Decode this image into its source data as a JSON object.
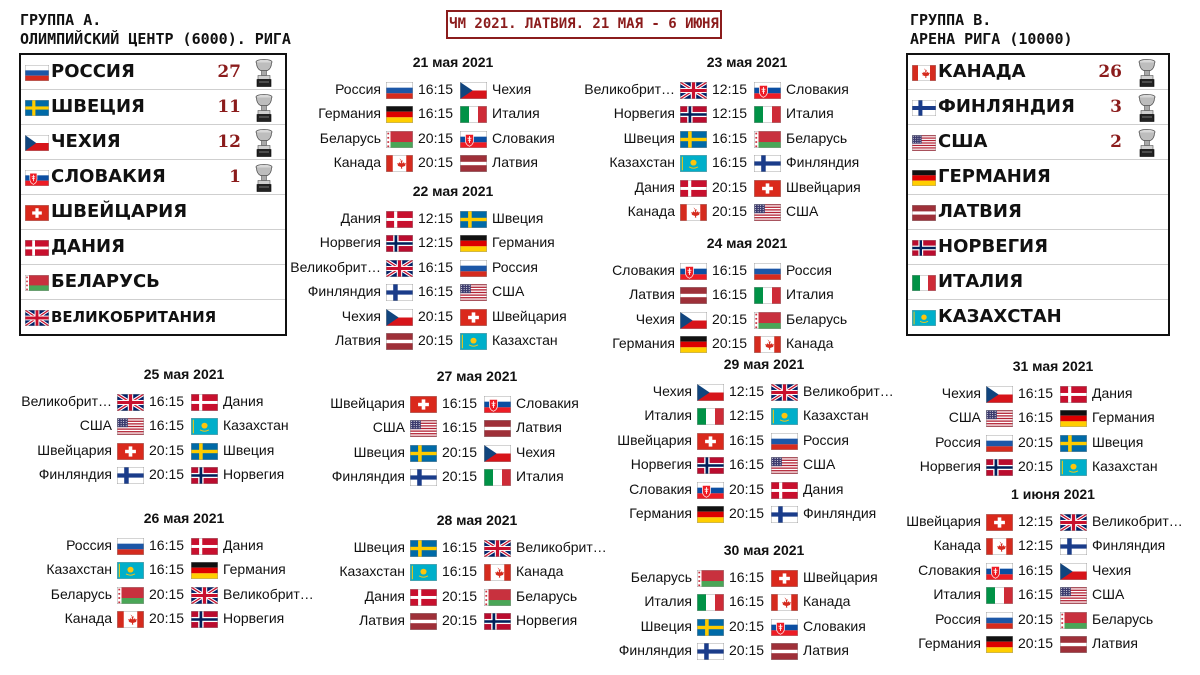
{
  "banner": "ЧМ 2021. ЛАТВИЯ. 21 МАЯ - 6 ИЮНЯ",
  "groupA": {
    "title1": "ГРУППА А.",
    "title2": "ОЛИМПИЙСКИЙ ЦЕНТР (6000). РИГА",
    "teams": [
      {
        "name": "РОССИЯ",
        "flag": "ru",
        "cups": "27"
      },
      {
        "name": "ШВЕЦИЯ",
        "flag": "se",
        "cups": "11"
      },
      {
        "name": "ЧЕХИЯ",
        "flag": "cz",
        "cups": "12"
      },
      {
        "name": "СЛОВАКИЯ",
        "flag": "sk",
        "cups": "1"
      },
      {
        "name": "ШВЕЙЦАРИЯ",
        "flag": "ch",
        "cups": ""
      },
      {
        "name": "ДАНИЯ",
        "flag": "dk",
        "cups": ""
      },
      {
        "name": "БЕЛАРУСЬ",
        "flag": "by",
        "cups": ""
      },
      {
        "name": "ВЕЛИКОБРИТАНИЯ",
        "flag": "gb",
        "cups": ""
      }
    ]
  },
  "groupB": {
    "title1": "ГРУППА В.",
    "title2": "АРЕНА РИГА (10000)",
    "teams": [
      {
        "name": "КАНАДА",
        "flag": "ca",
        "cups": "26"
      },
      {
        "name": "ФИНЛЯНДИЯ",
        "flag": "fi",
        "cups": "3"
      },
      {
        "name": "США",
        "flag": "us",
        "cups": "2"
      },
      {
        "name": "ГЕРМАНИЯ",
        "flag": "de",
        "cups": ""
      },
      {
        "name": "ЛАТВИЯ",
        "flag": "lv",
        "cups": ""
      },
      {
        "name": "НОРВЕГИЯ",
        "flag": "no",
        "cups": ""
      },
      {
        "name": "ИТАЛИЯ",
        "flag": "it",
        "cups": ""
      },
      {
        "name": "КАЗАХСТАН",
        "flag": "kz",
        "cups": ""
      }
    ]
  },
  "days": [
    {
      "date": "21 мая 2021",
      "matches": [
        {
          "t1": "Россия",
          "f1": "ru",
          "time": "16:15",
          "f2": "cz",
          "t2": "Чехия"
        },
        {
          "t1": "Германия",
          "f1": "de",
          "time": "16:15",
          "f2": "it",
          "t2": "Италия"
        },
        {
          "t1": "Беларусь",
          "f1": "by",
          "time": "20:15",
          "f2": "sk",
          "t2": "Словакия"
        },
        {
          "t1": "Канада",
          "f1": "ca",
          "time": "20:15",
          "f2": "lv",
          "t2": "Латвия"
        }
      ]
    },
    {
      "date": "22 мая 2021",
      "matches": [
        {
          "t1": "Дания",
          "f1": "dk",
          "time": "12:15",
          "f2": "se",
          "t2": "Швеция"
        },
        {
          "t1": "Норвегия",
          "f1": "no",
          "time": "12:15",
          "f2": "de",
          "t2": "Германия"
        },
        {
          "t1": "Великобрит…",
          "f1": "gb",
          "time": "16:15",
          "f2": "ru",
          "t2": "Россия"
        },
        {
          "t1": "Финляндия",
          "f1": "fi",
          "time": "16:15",
          "f2": "us",
          "t2": "США"
        },
        {
          "t1": "Чехия",
          "f1": "cz",
          "time": "20:15",
          "f2": "ch",
          "t2": "Швейцария"
        },
        {
          "t1": "Латвия",
          "f1": "lv",
          "time": "20:15",
          "f2": "kz",
          "t2": "Казахстан"
        }
      ]
    },
    {
      "date": "23 мая 2021",
      "matches": [
        {
          "t1": "Великобрит…",
          "f1": "gb",
          "time": "12:15",
          "f2": "sk",
          "t2": "Словакия"
        },
        {
          "t1": "Норвегия",
          "f1": "no",
          "time": "12:15",
          "f2": "it",
          "t2": "Италия"
        },
        {
          "t1": "Швеция",
          "f1": "se",
          "time": "16:15",
          "f2": "by",
          "t2": "Беларусь"
        },
        {
          "t1": "Казахстан",
          "f1": "kz",
          "time": "16:15",
          "f2": "fi",
          "t2": "Финляндия"
        },
        {
          "t1": "Дания",
          "f1": "dk",
          "time": "20:15",
          "f2": "ch",
          "t2": "Швейцария"
        },
        {
          "t1": "Канада",
          "f1": "ca",
          "time": "20:15",
          "f2": "us",
          "t2": "США"
        }
      ]
    },
    {
      "date": "24 мая 2021",
      "matches": [
        {
          "t1": "Словакия",
          "f1": "sk",
          "time": "16:15",
          "f2": "ru",
          "t2": "Россия"
        },
        {
          "t1": "Латвия",
          "f1": "lv",
          "time": "16:15",
          "f2": "it",
          "t2": "Италия"
        },
        {
          "t1": "Чехия",
          "f1": "cz",
          "time": "20:15",
          "f2": "by",
          "t2": "Беларусь"
        },
        {
          "t1": "Германия",
          "f1": "de",
          "time": "20:15",
          "f2": "ca",
          "t2": "Канада"
        }
      ]
    },
    {
      "date": "25 мая 2021",
      "matches": [
        {
          "t1": "Великобрит…",
          "f1": "gb",
          "time": "16:15",
          "f2": "dk",
          "t2": "Дания"
        },
        {
          "t1": "США",
          "f1": "us",
          "time": "16:15",
          "f2": "kz",
          "t2": "Казахстан"
        },
        {
          "t1": "Швейцария",
          "f1": "ch",
          "time": "20:15",
          "f2": "se",
          "t2": "Швеция"
        },
        {
          "t1": "Финляндия",
          "f1": "fi",
          "time": "20:15",
          "f2": "no",
          "t2": "Норвегия"
        }
      ]
    },
    {
      "date": "26 мая 2021",
      "matches": [
        {
          "t1": "Россия",
          "f1": "ru",
          "time": "16:15",
          "f2": "dk",
          "t2": "Дания"
        },
        {
          "t1": "Казахстан",
          "f1": "kz",
          "time": "16:15",
          "f2": "de",
          "t2": "Германия"
        },
        {
          "t1": "Беларусь",
          "f1": "by",
          "time": "20:15",
          "f2": "gb",
          "t2": "Великобрит…"
        },
        {
          "t1": "Канада",
          "f1": "ca",
          "time": "20:15",
          "f2": "no",
          "t2": "Норвегия"
        }
      ]
    },
    {
      "date": "27 мая 2021",
      "matches": [
        {
          "t1": "Швейцария",
          "f1": "ch",
          "time": "16:15",
          "f2": "sk",
          "t2": "Словакия"
        },
        {
          "t1": "США",
          "f1": "us",
          "time": "16:15",
          "f2": "lv",
          "t2": "Латвия"
        },
        {
          "t1": "Швеция",
          "f1": "se",
          "time": "20:15",
          "f2": "cz",
          "t2": "Чехия"
        },
        {
          "t1": "Финляндия",
          "f1": "fi",
          "time": "20:15",
          "f2": "it",
          "t2": "Италия"
        }
      ]
    },
    {
      "date": "28 мая 2021",
      "matches": [
        {
          "t1": "Швеция",
          "f1": "se",
          "time": "16:15",
          "f2": "gb",
          "t2": "Великобрит…"
        },
        {
          "t1": "Казахстан",
          "f1": "kz",
          "time": "16:15",
          "f2": "ca",
          "t2": "Канада"
        },
        {
          "t1": "Дания",
          "f1": "dk",
          "time": "20:15",
          "f2": "by",
          "t2": "Беларусь"
        },
        {
          "t1": "Латвия",
          "f1": "lv",
          "time": "20:15",
          "f2": "no",
          "t2": "Норвегия"
        }
      ]
    },
    {
      "date": "29 мая 2021",
      "matches": [
        {
          "t1": "Чехия",
          "f1": "cz",
          "time": "12:15",
          "f2": "gb",
          "t2": "Великобрит…"
        },
        {
          "t1": "Италия",
          "f1": "it",
          "time": "12:15",
          "f2": "kz",
          "t2": "Казахстан"
        },
        {
          "t1": "Швейцария",
          "f1": "ch",
          "time": "16:15",
          "f2": "ru",
          "t2": "Россия"
        },
        {
          "t1": "Норвегия",
          "f1": "no",
          "time": "16:15",
          "f2": "us",
          "t2": "США"
        },
        {
          "t1": "Словакия",
          "f1": "sk",
          "time": "20:15",
          "f2": "dk",
          "t2": "Дания"
        },
        {
          "t1": "Германия",
          "f1": "de",
          "time": "20:15",
          "f2": "fi",
          "t2": "Финляндия"
        }
      ]
    },
    {
      "date": "30 мая 2021",
      "matches": [
        {
          "t1": "Беларусь",
          "f1": "by",
          "time": "16:15",
          "f2": "ch",
          "t2": "Швейцария"
        },
        {
          "t1": "Италия",
          "f1": "it",
          "time": "16:15",
          "f2": "ca",
          "t2": "Канада"
        },
        {
          "t1": "Швеция",
          "f1": "se",
          "time": "20:15",
          "f2": "sk",
          "t2": "Словакия"
        },
        {
          "t1": "Финляндия",
          "f1": "fi",
          "time": "20:15",
          "f2": "lv",
          "t2": "Латвия"
        }
      ]
    },
    {
      "date": "31 мая 2021",
      "matches": [
        {
          "t1": "Чехия",
          "f1": "cz",
          "time": "16:15",
          "f2": "dk",
          "t2": "Дания"
        },
        {
          "t1": "США",
          "f1": "us",
          "time": "16:15",
          "f2": "de",
          "t2": "Германия"
        },
        {
          "t1": "Россия",
          "f1": "ru",
          "time": "20:15",
          "f2": "se",
          "t2": "Швеция"
        },
        {
          "t1": "Норвегия",
          "f1": "no",
          "time": "20:15",
          "f2": "kz",
          "t2": "Казахстан"
        }
      ]
    },
    {
      "date": "1 июня 2021",
      "matches": [
        {
          "t1": "Швейцария",
          "f1": "ch",
          "time": "12:15",
          "f2": "gb",
          "t2": "Великобрит…"
        },
        {
          "t1": "Канада",
          "f1": "ca",
          "time": "12:15",
          "f2": "fi",
          "t2": "Финляндия"
        },
        {
          "t1": "Словакия",
          "f1": "sk",
          "time": "16:15",
          "f2": "cz",
          "t2": "Чехия"
        },
        {
          "t1": "Италия",
          "f1": "it",
          "time": "16:15",
          "f2": "us",
          "t2": "США"
        },
        {
          "t1": "Россия",
          "f1": "ru",
          "time": "20:15",
          "f2": "by",
          "t2": "Беларусь"
        },
        {
          "t1": "Германия",
          "f1": "de",
          "time": "20:15",
          "f2": "lv",
          "t2": "Латвия"
        }
      ]
    }
  ]
}
